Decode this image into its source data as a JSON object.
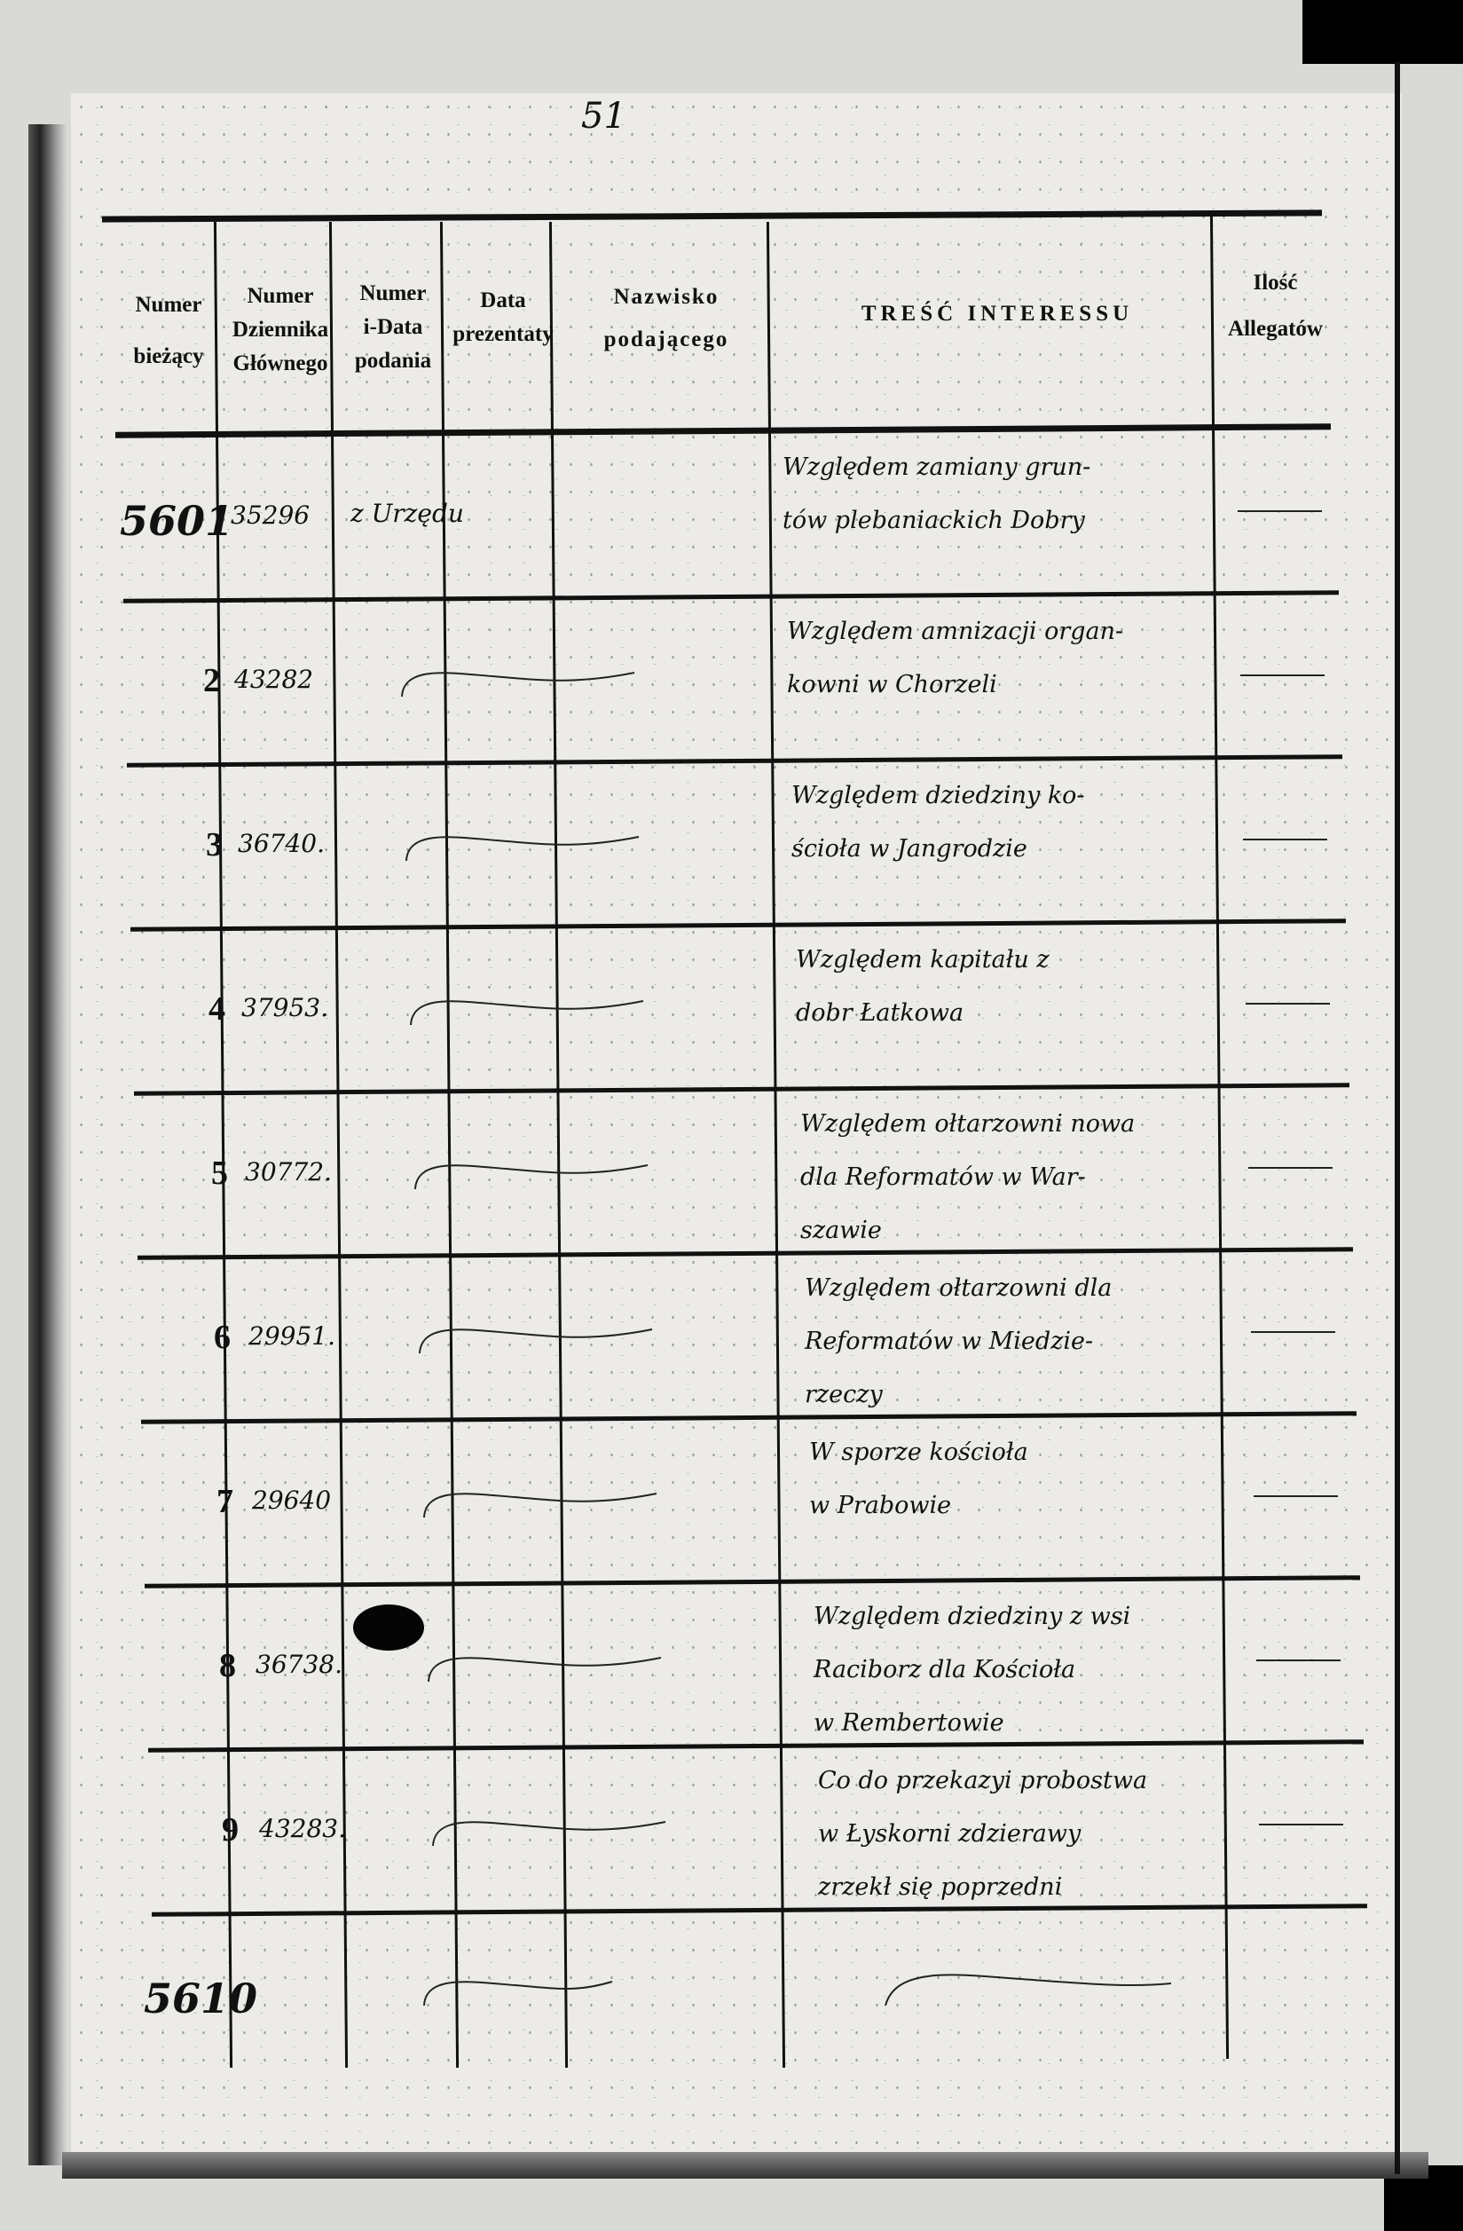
{
  "page_number": "51",
  "headers": {
    "col1": [
      "Numer",
      "bieżący"
    ],
    "col2": [
      "Numer",
      "Dziennika",
      "Głównego"
    ],
    "col3": [
      "Numer",
      "i-Data",
      "podania"
    ],
    "col4": [
      "Data",
      "prezentaty"
    ],
    "col5": [
      "Nazwisko",
      "podającego"
    ],
    "col6": "TREŚĆ INTERESSU",
    "col7": [
      "Ilość",
      "Allegatów"
    ]
  },
  "rows": [
    {
      "numer": "5601",
      "dziennik": "35296",
      "podanie": "z Urzędu",
      "tresc": [
        "Względem zamiany grun-",
        "tów plebaniackich Dobry"
      ],
      "allegaty": "—"
    },
    {
      "numer": "2",
      "dziennik": "43282",
      "podanie": "",
      "tresc": [
        "Względem amnizacji organ-",
        "kowni w Chorzeli"
      ],
      "allegaty": "—"
    },
    {
      "numer": "3",
      "dziennik": "36740.",
      "podanie": "",
      "tresc": [
        "Względem dziedziny ko-",
        "ścioła w Jangrodzie"
      ],
      "allegaty": "—"
    },
    {
      "numer": "4",
      "dziennik": "37953.",
      "podanie": "",
      "tresc": [
        "Względem kapitału z",
        "dobr Łatkowa"
      ],
      "allegaty": "—"
    },
    {
      "numer": "5",
      "dziennik": "30772.",
      "podanie": "",
      "tresc": [
        "Względem ołtarzowni nowa",
        "dla Reformatów w War-",
        "szawie"
      ],
      "allegaty": "—"
    },
    {
      "numer": "6",
      "dziennik": "29951.",
      "podanie": "",
      "tresc": [
        "Względem ołtarzowni dla",
        "Reformatów w Miedzie-",
        "rzeczy"
      ],
      "allegaty": "—"
    },
    {
      "numer": "7",
      "dziennik": "29640",
      "podanie": "",
      "tresc": [
        "W sporze kościoła",
        "w Prabowie"
      ],
      "allegaty": "—"
    },
    {
      "numer": "8",
      "dziennik": "36738.",
      "podanie": "",
      "tresc": [
        "Względem dziedziny z wsi",
        "Raciborz dla Kościoła",
        "w Rembertowie"
      ],
      "allegaty": "—"
    },
    {
      "numer": "9",
      "dziennik": "43283.",
      "podanie": "",
      "tresc": [
        "Co do przekazyi probostwa",
        "w Łyskorni zdzierawy",
        "zrzekł się poprzedni"
      ],
      "allegaty": "—"
    },
    {
      "numer": "5610",
      "dziennik": "",
      "podanie": "",
      "tresc": [],
      "allegaty": ""
    }
  ]
}
